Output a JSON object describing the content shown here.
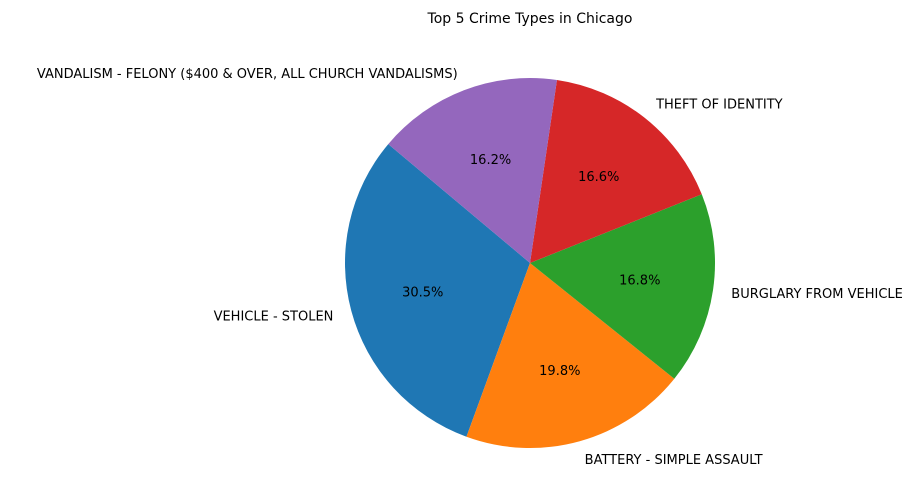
{
  "chart_data": {
    "type": "pie",
    "title": "Top 5 Crime Types in Chicago",
    "slices": [
      {
        "label": "VEHICLE - STOLEN",
        "value": 30.5,
        "pct_label": "30.5%",
        "color": "#1f77b4"
      },
      {
        "label": "BATTERY - SIMPLE ASSAULT",
        "value": 19.8,
        "pct_label": "19.8%",
        "color": "#ff7f0e"
      },
      {
        "label": "BURGLARY FROM VEHICLE",
        "value": 16.8,
        "pct_label": "16.8%",
        "color": "#2ca02c"
      },
      {
        "label": "THEFT OF IDENTITY",
        "value": 16.6,
        "pct_label": "16.6%",
        "color": "#d62728"
      },
      {
        "label": "VANDALISM - FELONY ($400 & OVER, ALL CHURCH VANDALISMS)",
        "value": 16.2,
        "pct_label": "16.2%",
        "color": "#9467bd"
      }
    ],
    "start_angle_deg": 140,
    "direction": "counterclockwise"
  }
}
